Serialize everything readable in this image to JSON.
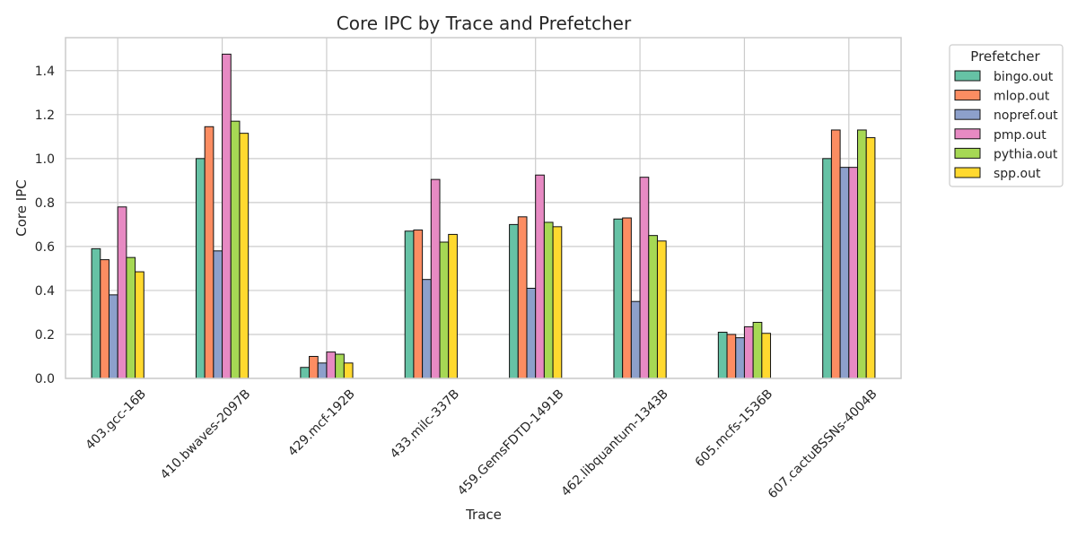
{
  "chart_data": {
    "type": "bar",
    "title": "Core IPC by Trace and Prefetcher",
    "xlabel": "Trace",
    "ylabel": "Core IPC",
    "ylim": [
      0,
      1.55
    ],
    "yticks": [
      "0.0",
      "0.2",
      "0.4",
      "0.6",
      "0.8",
      "1.0",
      "1.2",
      "1.4"
    ],
    "grid": true,
    "legend": {
      "title": "Prefetcher",
      "placement": "outside-top-right"
    },
    "categories": [
      "403.gcc-16B",
      "410.bwaves-2097B",
      "429.mcf-192B",
      "433.milc-337B",
      "459.GemsFDTD-1491B",
      "462.libquantum-1343B",
      "605.mcfs-1536B",
      "607.cactuBSSNs-4004B"
    ],
    "series": [
      {
        "name": "bingo.out",
        "color": "#66c2a5",
        "values": [
          0.59,
          1.0,
          0.05,
          0.67,
          0.7,
          0.725,
          0.21,
          1.0
        ]
      },
      {
        "name": "mlop.out",
        "color": "#fc8d62",
        "values": [
          0.54,
          1.145,
          0.1,
          0.675,
          0.735,
          0.73,
          0.2,
          1.13
        ]
      },
      {
        "name": "nopref.out",
        "color": "#8da0cb",
        "values": [
          0.38,
          0.58,
          0.07,
          0.45,
          0.41,
          0.35,
          0.185,
          0.96
        ]
      },
      {
        "name": "pmp.out",
        "color": "#e78ac3",
        "values": [
          0.78,
          1.475,
          0.12,
          0.905,
          0.925,
          0.915,
          0.235,
          0.96
        ]
      },
      {
        "name": "pythia.out",
        "color": "#a6d854",
        "values": [
          0.55,
          1.17,
          0.11,
          0.62,
          0.71,
          0.65,
          0.255,
          1.13
        ]
      },
      {
        "name": "spp.out",
        "color": "#ffd92f",
        "values": [
          0.485,
          1.115,
          0.07,
          0.655,
          0.69,
          0.625,
          0.205,
          1.095
        ]
      }
    ]
  }
}
